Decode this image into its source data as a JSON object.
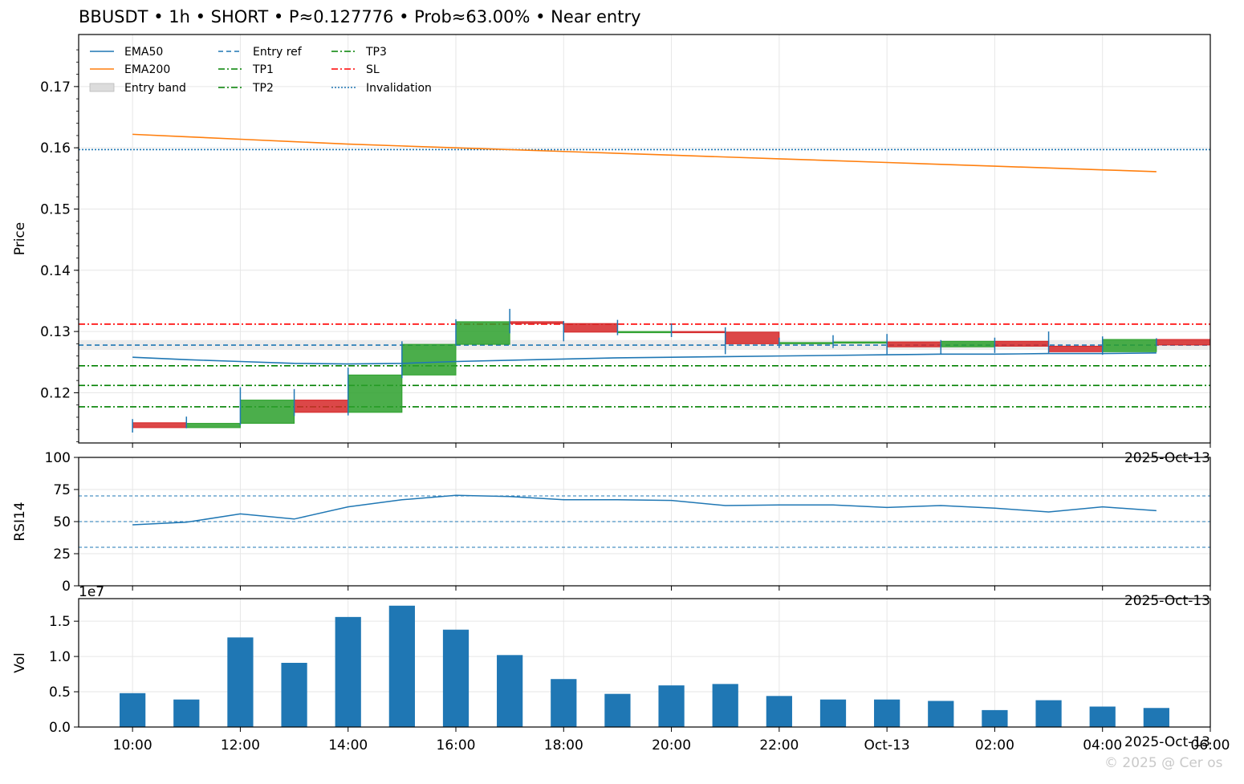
{
  "title": "BBUSDT • 1h • SHORT • P≈0.127776 • Prob≈63.00% • Near entry",
  "watermark": "© 2025 @ Cer os",
  "colors": {
    "up": "#2ca02c",
    "down": "#d62728",
    "ema50": "#1f77b4",
    "ema200": "#ff7f0e",
    "entry": "#1f77b4",
    "tp": "#008000",
    "sl": "#ff0000",
    "invalidation": "#1f77b4",
    "band": "#dcdcdc",
    "volume": "#1f77b4",
    "rsi": "#1f77b4",
    "grid": "#e6e6e6"
  },
  "chart_data": [
    {
      "type": "candlestick",
      "ylabel": "Price",
      "ylim": [
        0.1118,
        0.1785
      ],
      "yticks": [
        0.12,
        0.13,
        0.14,
        0.15,
        0.16,
        0.17
      ],
      "ytick_labels": [
        "0.12",
        "0.13",
        "0.14",
        "0.15",
        "0.16",
        "0.17"
      ],
      "offset_label": "2025-Oct-13",
      "grid": true,
      "legend_position": "top-left",
      "legend": [
        {
          "label": "EMA50",
          "style": "solid",
          "color": "#1f77b4"
        },
        {
          "label": "EMA200",
          "style": "solid",
          "color": "#ff7f0e"
        },
        {
          "label": "Entry band",
          "style": "patch",
          "color": "#dcdcdc"
        },
        {
          "label": "Entry ref",
          "style": "dashed",
          "color": "#1f77b4"
        },
        {
          "label": "TP1",
          "style": "dashdot",
          "color": "#008000"
        },
        {
          "label": "TP2",
          "style": "dashdot",
          "color": "#008000"
        },
        {
          "label": "TP3",
          "style": "dashdot",
          "color": "#008000"
        },
        {
          "label": "SL",
          "style": "dashdot",
          "color": "#ff0000"
        },
        {
          "label": "Invalidation",
          "style": "dotted",
          "color": "#1f77b4"
        }
      ],
      "hours": [
        10,
        11,
        12,
        13,
        14,
        15,
        16,
        17,
        18,
        19,
        20,
        21,
        22,
        23,
        24,
        25,
        26,
        27,
        28,
        29
      ],
      "candles": [
        {
          "o": 0.1151,
          "h": 0.1157,
          "l": 0.1135,
          "c": 0.1143
        },
        {
          "o": 0.1143,
          "h": 0.1161,
          "l": 0.1142,
          "c": 0.115
        },
        {
          "o": 0.115,
          "h": 0.1209,
          "l": 0.1147,
          "c": 0.1188
        },
        {
          "o": 0.1188,
          "h": 0.1206,
          "l": 0.1162,
          "c": 0.1168
        },
        {
          "o": 0.1168,
          "h": 0.1241,
          "l": 0.1163,
          "c": 0.1229
        },
        {
          "o": 0.1229,
          "h": 0.1284,
          "l": 0.1224,
          "c": 0.1279
        },
        {
          "o": 0.1279,
          "h": 0.132,
          "l": 0.1277,
          "c": 0.1316
        },
        {
          "o": 0.1316,
          "h": 0.1337,
          "l": 0.1297,
          "c": 0.1313
        },
        {
          "o": 0.1313,
          "h": 0.1317,
          "l": 0.1284,
          "c": 0.1299
        },
        {
          "o": 0.1299,
          "h": 0.1319,
          "l": 0.1294,
          "c": 0.13
        },
        {
          "o": 0.13,
          "h": 0.1313,
          "l": 0.1291,
          "c": 0.1299
        },
        {
          "o": 0.1299,
          "h": 0.1307,
          "l": 0.1263,
          "c": 0.128
        },
        {
          "o": 0.128,
          "h": 0.129,
          "l": 0.1273,
          "c": 0.1282
        },
        {
          "o": 0.1282,
          "h": 0.1294,
          "l": 0.1273,
          "c": 0.1283
        },
        {
          "o": 0.1283,
          "h": 0.1296,
          "l": 0.1263,
          "c": 0.1275
        },
        {
          "o": 0.1275,
          "h": 0.1286,
          "l": 0.1263,
          "c": 0.1284
        },
        {
          "o": 0.1284,
          "h": 0.129,
          "l": 0.1265,
          "c": 0.1276
        },
        {
          "o": 0.1276,
          "h": 0.13,
          "l": 0.1265,
          "c": 0.1267
        },
        {
          "o": 0.1267,
          "h": 0.1292,
          "l": 0.1262,
          "c": 0.1287
        },
        {
          "o": 0.1287,
          "h": 0.1289,
          "l": 0.1276,
          "c": 0.1278
        }
      ],
      "ema50": [
        0.1258,
        0.1254,
        0.1251,
        0.1248,
        0.1247,
        0.1248,
        0.1251,
        0.1253,
        0.1255,
        0.1257,
        0.1258,
        0.1259,
        0.126,
        0.1261,
        0.1262,
        0.1263,
        0.1263,
        0.1264,
        0.1264,
        0.1265
      ],
      "ema200": [
        0.1622,
        0.1618,
        0.1614,
        0.161,
        0.1606,
        0.1603,
        0.16,
        0.1597,
        0.1594,
        0.1591,
        0.1588,
        0.1585,
        0.1582,
        0.1579,
        0.1576,
        0.1573,
        0.157,
        0.1567,
        0.1564,
        0.1561
      ],
      "levels": {
        "entry_ref": 0.127776,
        "entry_band": [
          0.127,
          0.1286
        ],
        "tp1": 0.1244,
        "tp2": 0.1212,
        "tp3": 0.1177,
        "sl": 0.1312,
        "invalidation": 0.1597
      }
    },
    {
      "type": "line",
      "ylabel": "RSI14",
      "ylim": [
        0,
        100
      ],
      "yticks": [
        0,
        25,
        50,
        75,
        100
      ],
      "ytick_labels": [
        "0",
        "25",
        "50",
        "75",
        "100"
      ],
      "offset_label": "2025-Oct-13",
      "reference_lines": [
        30,
        50,
        70
      ],
      "grid": true,
      "values": [
        47.5,
        49.5,
        56.0,
        52.0,
        61.5,
        67.0,
        70.5,
        69.5,
        67.0,
        67.0,
        66.5,
        62.5,
        63.0,
        63.0,
        61.0,
        62.5,
        60.5,
        57.5,
        61.5,
        58.5
      ]
    },
    {
      "type": "bar",
      "ylabel": "Vol",
      "ylim": [
        0,
        1.82
      ],
      "yticks": [
        0,
        0.5,
        1.0,
        1.5
      ],
      "ytick_labels": [
        "0.0",
        "0.5",
        "1.0",
        "1.5"
      ],
      "exponent_label": "1e7",
      "offset_label": "2025-Oct-13",
      "grid": true,
      "values": [
        0.48,
        0.39,
        1.27,
        0.91,
        1.56,
        1.72,
        1.38,
        1.02,
        0.68,
        0.47,
        0.59,
        0.61,
        0.44,
        0.39,
        0.39,
        0.37,
        0.24,
        0.38,
        0.29,
        0.27
      ]
    }
  ],
  "xaxis": {
    "ticks": [
      10,
      12,
      14,
      16,
      18,
      20,
      22,
      24,
      26,
      28,
      30
    ],
    "tick_labels": [
      "10:00",
      "12:00",
      "14:00",
      "16:00",
      "18:00",
      "20:00",
      "22:00",
      "Oct-13",
      "02:00",
      "04:00",
      "06:00"
    ],
    "range": [
      9.0,
      30.0
    ]
  }
}
